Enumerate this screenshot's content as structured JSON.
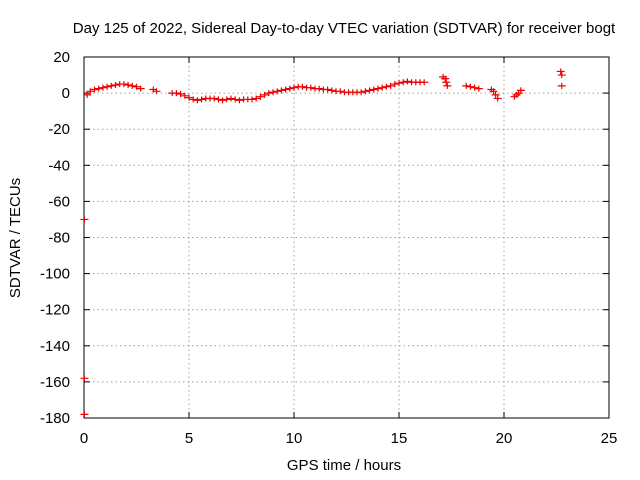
{
  "chart_data": {
    "type": "scatter",
    "title": "Day 125 of 2022, Sidereal Day-to-day VTEC variation (SDTVAR) for receiver bogt",
    "xlabel": "GPS time / hours",
    "ylabel": "SDTVAR / TECUs",
    "xlim": [
      0,
      25
    ],
    "ylim": [
      -180,
      20
    ],
    "xticks": [
      0,
      5,
      10,
      15,
      20,
      25
    ],
    "yticks": [
      20,
      0,
      -20,
      -40,
      -60,
      -80,
      -100,
      -120,
      -140,
      -160,
      -180
    ],
    "xtick_labels": [
      "0",
      "5",
      "10",
      "15",
      "20",
      "25"
    ],
    "ytick_labels": [
      "20",
      "0",
      "-20",
      "-40",
      "-60",
      "-80",
      "-100",
      "-120",
      "-140",
      "-160",
      "-180"
    ],
    "grid": true,
    "marker": "+",
    "color": "#ee0000",
    "series": [
      {
        "name": "SDTVAR",
        "points": [
          [
            0.02,
            -70
          ],
          [
            0.02,
            -158
          ],
          [
            0.02,
            -178
          ],
          [
            0.15,
            -1
          ],
          [
            0.3,
            1
          ],
          [
            0.5,
            2
          ],
          [
            0.7,
            2.5
          ],
          [
            0.9,
            3
          ],
          [
            1.1,
            3.5
          ],
          [
            1.3,
            4
          ],
          [
            1.5,
            4.5
          ],
          [
            1.7,
            5
          ],
          [
            1.9,
            5
          ],
          [
            2.1,
            4.5
          ],
          [
            2.3,
            4
          ],
          [
            2.5,
            3.5
          ],
          [
            2.7,
            2.5
          ],
          [
            3.3,
            2
          ],
          [
            3.45,
            1
          ],
          [
            4.2,
            0
          ],
          [
            4.4,
            0
          ],
          [
            4.6,
            -0.5
          ],
          [
            4.8,
            -1.5
          ],
          [
            5.0,
            -2.5
          ],
          [
            5.2,
            -3.5
          ],
          [
            5.4,
            -4
          ],
          [
            5.6,
            -3.5
          ],
          [
            5.8,
            -3
          ],
          [
            6.0,
            -3
          ],
          [
            6.2,
            -3
          ],
          [
            6.4,
            -3.5
          ],
          [
            6.6,
            -4
          ],
          [
            6.8,
            -3.5
          ],
          [
            7.0,
            -3
          ],
          [
            7.2,
            -3.5
          ],
          [
            7.4,
            -4
          ],
          [
            7.6,
            -3.5
          ],
          [
            7.8,
            -3.5
          ],
          [
            8.0,
            -3.5
          ],
          [
            8.2,
            -3
          ],
          [
            8.4,
            -2
          ],
          [
            8.6,
            -1
          ],
          [
            8.8,
            0
          ],
          [
            9.0,
            0.5
          ],
          [
            9.2,
            1
          ],
          [
            9.4,
            1.5
          ],
          [
            9.6,
            2
          ],
          [
            9.8,
            2.5
          ],
          [
            10.0,
            3
          ],
          [
            10.2,
            3.5
          ],
          [
            10.4,
            3.5
          ],
          [
            10.6,
            3
          ],
          [
            10.8,
            3
          ],
          [
            11.0,
            2.5
          ],
          [
            11.2,
            2.5
          ],
          [
            11.4,
            2
          ],
          [
            11.6,
            2
          ],
          [
            11.8,
            1.5
          ],
          [
            12.0,
            1
          ],
          [
            12.2,
            1
          ],
          [
            12.4,
            0.5
          ],
          [
            12.6,
            0.5
          ],
          [
            12.8,
            0.5
          ],
          [
            13.0,
            0.5
          ],
          [
            13.2,
            0.5
          ],
          [
            13.4,
            1
          ],
          [
            13.6,
            1.5
          ],
          [
            13.8,
            2
          ],
          [
            14.0,
            2.5
          ],
          [
            14.2,
            3
          ],
          [
            14.4,
            3.5
          ],
          [
            14.6,
            4
          ],
          [
            14.8,
            5
          ],
          [
            15.0,
            5.5
          ],
          [
            15.2,
            6
          ],
          [
            15.4,
            6.5
          ],
          [
            15.6,
            6
          ],
          [
            15.8,
            6
          ],
          [
            16.0,
            6
          ],
          [
            16.2,
            6
          ],
          [
            17.1,
            9
          ],
          [
            17.2,
            8
          ],
          [
            17.25,
            6
          ],
          [
            17.3,
            4
          ],
          [
            18.2,
            4
          ],
          [
            18.4,
            3.5
          ],
          [
            18.6,
            3
          ],
          [
            18.8,
            2.5
          ],
          [
            19.4,
            2
          ],
          [
            19.5,
            1
          ],
          [
            19.6,
            -1
          ],
          [
            19.7,
            -3
          ],
          [
            20.5,
            -2
          ],
          [
            20.6,
            -1
          ],
          [
            20.7,
            0
          ],
          [
            20.8,
            1.5
          ],
          [
            22.7,
            12
          ],
          [
            22.75,
            10
          ],
          [
            22.75,
            4
          ]
        ]
      }
    ]
  }
}
